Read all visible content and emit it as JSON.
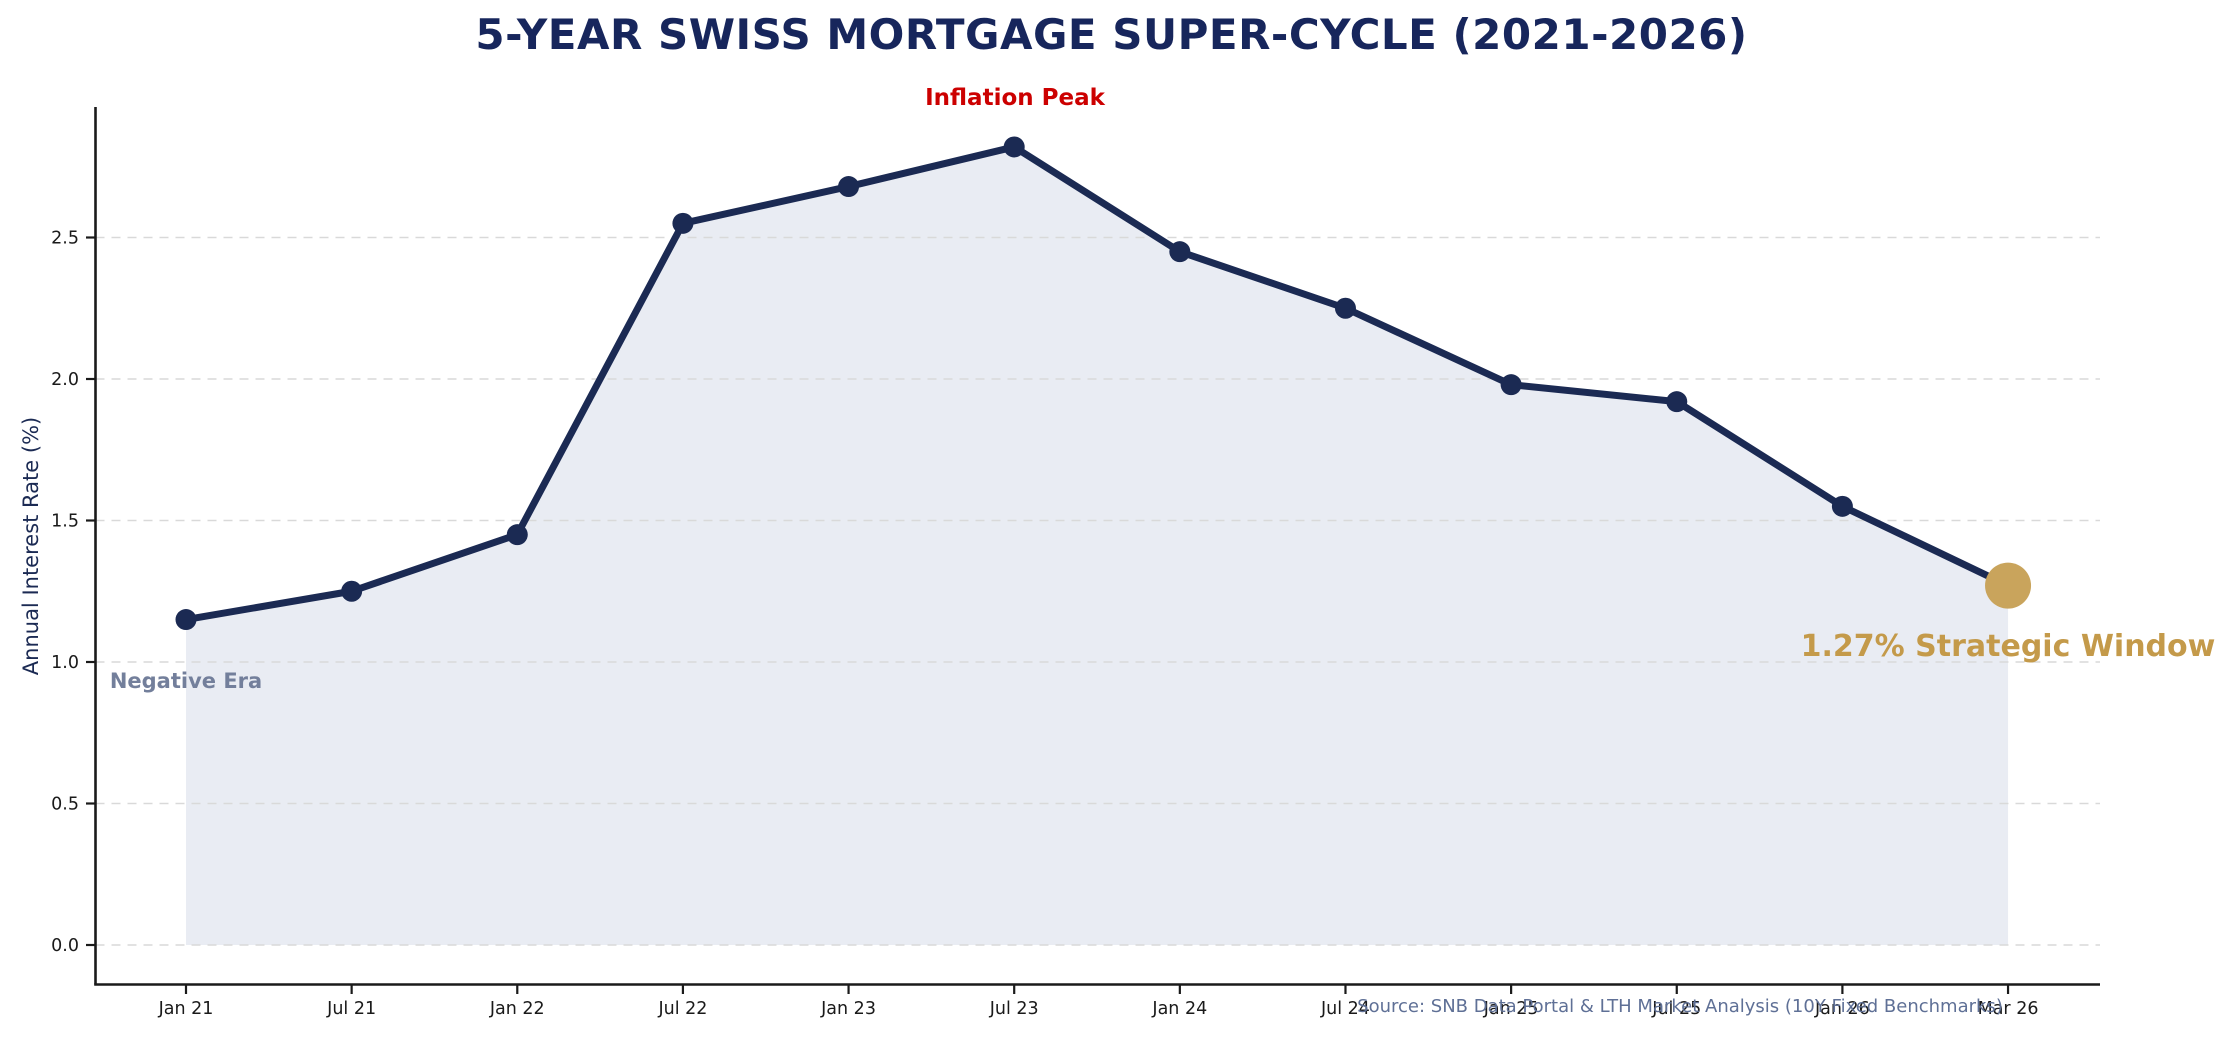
{
  "chart_data": {
    "type": "line",
    "title": "5-YEAR SWISS MORTGAGE SUPER-CYCLE (2021-2026)",
    "ylabel": "Annual Interest Rate (%)",
    "xlabel": "",
    "categories": [
      "Jan 21",
      "Jul 21",
      "Jan 22",
      "Jul 22",
      "Jan 23",
      "Jul 23",
      "Jan 24",
      "Jul 24",
      "Jan 25",
      "Jul 25",
      "Jan 26",
      "Mar 26"
    ],
    "values": [
      1.15,
      1.25,
      1.45,
      2.55,
      2.68,
      2.82,
      2.45,
      2.25,
      1.98,
      1.92,
      1.55,
      1.27
    ],
    "yticks": [
      "0.0",
      "0.5",
      "1.0",
      "1.5",
      "2.0",
      "2.5"
    ],
    "ylim": [
      -0.14,
      2.96
    ],
    "grid": true,
    "grid_style": "horizontal dashed",
    "legend_position": "none",
    "area_fill": true,
    "annotations": [
      {
        "id": "inflation-peak",
        "text": "Inflation Peak",
        "color": "#cc0000"
      },
      {
        "id": "negative-era",
        "text": "Negative Era",
        "color": "#737f9b"
      },
      {
        "id": "strategic-window",
        "text": "1.27% Strategic Window",
        "color": "#c49a4a"
      }
    ],
    "source": "Source: SNB Data Portal & LTH Market Analysis (10Y Fixed Benchmarks)",
    "colors": {
      "line": "#1b2a53",
      "marker": "#1b2a53",
      "final_marker": "#c9a45c",
      "area": "#e9ecf3",
      "grid": "#d9d9d9",
      "axis": "#1a1a1a",
      "tick_label": "#1a1a1a",
      "title": "#17265c",
      "ylabel": "#1b2a53",
      "source": "#5f7096"
    }
  }
}
